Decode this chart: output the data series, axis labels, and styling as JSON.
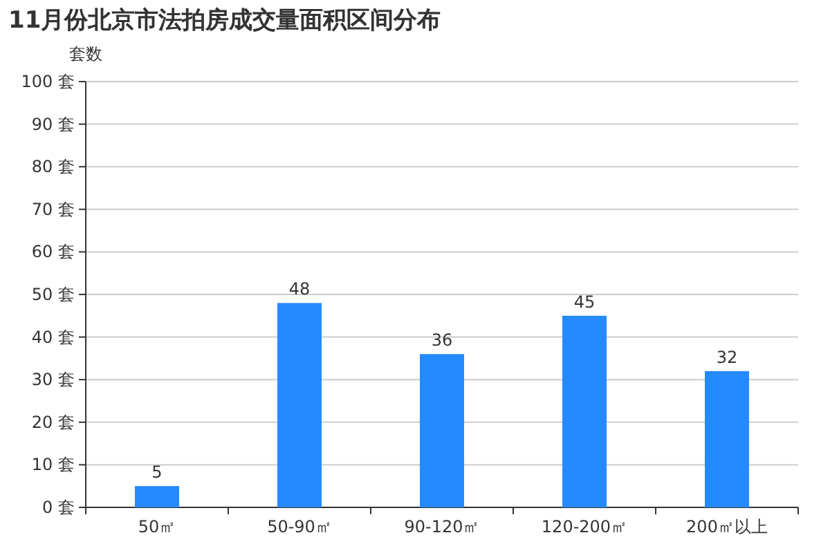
{
  "chart_data": {
    "type": "bar",
    "title": "11月份北京市法拍房成交量面积区间分布",
    "ylabel": "套数",
    "categories": [
      "50㎡",
      "50-90㎡",
      "90-120㎡",
      "120-200㎡",
      "200㎡以上"
    ],
    "values": [
      5,
      48,
      36,
      45,
      32
    ],
    "color": "#2589ff",
    "data_labels": true,
    "grid": "y",
    "ylim": [
      0,
      100
    ],
    "yticks": [
      {
        "value": 0,
        "label": "0 套"
      },
      {
        "value": 10,
        "label": "10 套"
      },
      {
        "value": 20,
        "label": "20 套"
      },
      {
        "value": 30,
        "label": "30 套"
      },
      {
        "value": 40,
        "label": "40 套"
      },
      {
        "value": 50,
        "label": "50 套"
      },
      {
        "value": 60,
        "label": "60 套"
      },
      {
        "value": 70,
        "label": "70 套"
      },
      {
        "value": 80,
        "label": "80 套"
      },
      {
        "value": 90,
        "label": "90 套"
      },
      {
        "value": 100,
        "label": "100 套"
      }
    ]
  }
}
